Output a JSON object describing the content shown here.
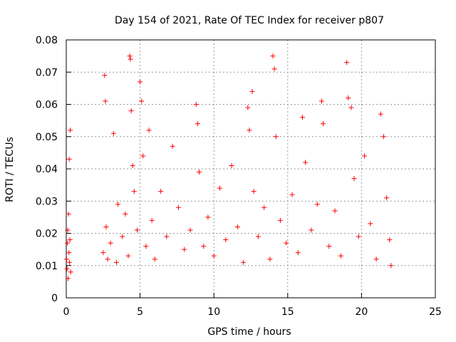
{
  "chart_data": {
    "type": "scatter",
    "title": "Day 154 of 2021, Rate Of TEC Index for receiver p807",
    "xlabel": "GPS time / hours",
    "ylabel": "ROTI / TECUs",
    "xlim": [
      0,
      25
    ],
    "ylim": [
      0,
      0.08
    ],
    "x_ticks": [
      0,
      5,
      10,
      15,
      20,
      25
    ],
    "y_ticks": [
      0,
      0.01,
      0.02,
      0.03,
      0.04,
      0.05,
      0.06,
      0.07,
      0.08
    ],
    "x_tick_labels": [
      "0",
      "5",
      "10",
      "15",
      "20",
      "25"
    ],
    "y_tick_labels": [
      "0",
      "0.01",
      "0.02",
      "0.03",
      "0.04",
      "0.05",
      "0.06",
      "0.07",
      "0.08"
    ],
    "grid": true,
    "marker": "+",
    "color": "#ff0000",
    "series": [
      {
        "points": [
          [
            0.02,
            0.012
          ],
          [
            0.05,
            0.009
          ],
          [
            0.08,
            0.017
          ],
          [
            0.1,
            0.021
          ],
          [
            0.12,
            0.006
          ],
          [
            0.15,
            0.026
          ],
          [
            0.18,
            0.014
          ],
          [
            0.2,
            0.043
          ],
          [
            0.22,
            0.011
          ],
          [
            0.25,
            0.018
          ],
          [
            0.27,
            0.052
          ],
          [
            0.3,
            0.008
          ],
          [
            2.5,
            0.014
          ],
          [
            2.6,
            0.069
          ],
          [
            2.65,
            0.061
          ],
          [
            2.7,
            0.022
          ],
          [
            2.8,
            0.012
          ],
          [
            3.0,
            0.017
          ],
          [
            3.2,
            0.051
          ],
          [
            3.4,
            0.011
          ],
          [
            3.5,
            0.029
          ],
          [
            3.8,
            0.019
          ],
          [
            4.0,
            0.026
          ],
          [
            4.2,
            0.013
          ],
          [
            4.3,
            0.075
          ],
          [
            4.35,
            0.074
          ],
          [
            4.4,
            0.058
          ],
          [
            4.5,
            0.041
          ],
          [
            4.6,
            0.033
          ],
          [
            4.8,
            0.021
          ],
          [
            5.0,
            0.067
          ],
          [
            5.1,
            0.061
          ],
          [
            5.2,
            0.044
          ],
          [
            5.4,
            0.016
          ],
          [
            5.6,
            0.052
          ],
          [
            5.8,
            0.024
          ],
          [
            6.0,
            0.012
          ],
          [
            6.4,
            0.033
          ],
          [
            6.8,
            0.019
          ],
          [
            7.2,
            0.047
          ],
          [
            7.6,
            0.028
          ],
          [
            8.0,
            0.015
          ],
          [
            8.4,
            0.021
          ],
          [
            8.8,
            0.06
          ],
          [
            8.9,
            0.054
          ],
          [
            9.0,
            0.039
          ],
          [
            9.3,
            0.016
          ],
          [
            9.6,
            0.025
          ],
          [
            10.0,
            0.013
          ],
          [
            10.4,
            0.034
          ],
          [
            10.8,
            0.018
          ],
          [
            11.2,
            0.041
          ],
          [
            11.6,
            0.022
          ],
          [
            12.0,
            0.011
          ],
          [
            12.3,
            0.059
          ],
          [
            12.4,
            0.052
          ],
          [
            12.6,
            0.064
          ],
          [
            12.7,
            0.033
          ],
          [
            13.0,
            0.019
          ],
          [
            13.4,
            0.028
          ],
          [
            13.8,
            0.012
          ],
          [
            14.0,
            0.075
          ],
          [
            14.1,
            0.071
          ],
          [
            14.2,
            0.05
          ],
          [
            14.5,
            0.024
          ],
          [
            14.9,
            0.017
          ],
          [
            15.3,
            0.032
          ],
          [
            15.7,
            0.014
          ],
          [
            16.0,
            0.056
          ],
          [
            16.2,
            0.042
          ],
          [
            16.6,
            0.021
          ],
          [
            17.0,
            0.029
          ],
          [
            17.3,
            0.061
          ],
          [
            17.4,
            0.054
          ],
          [
            17.8,
            0.016
          ],
          [
            18.2,
            0.027
          ],
          [
            18.6,
            0.013
          ],
          [
            19.0,
            0.073
          ],
          [
            19.1,
            0.062
          ],
          [
            19.3,
            0.059
          ],
          [
            19.5,
            0.037
          ],
          [
            19.8,
            0.019
          ],
          [
            20.2,
            0.044
          ],
          [
            20.6,
            0.023
          ],
          [
            21.0,
            0.012
          ],
          [
            21.3,
            0.057
          ],
          [
            21.5,
            0.05
          ],
          [
            21.7,
            0.031
          ],
          [
            21.9,
            0.018
          ],
          [
            22.0,
            0.01
          ]
        ]
      }
    ]
  }
}
